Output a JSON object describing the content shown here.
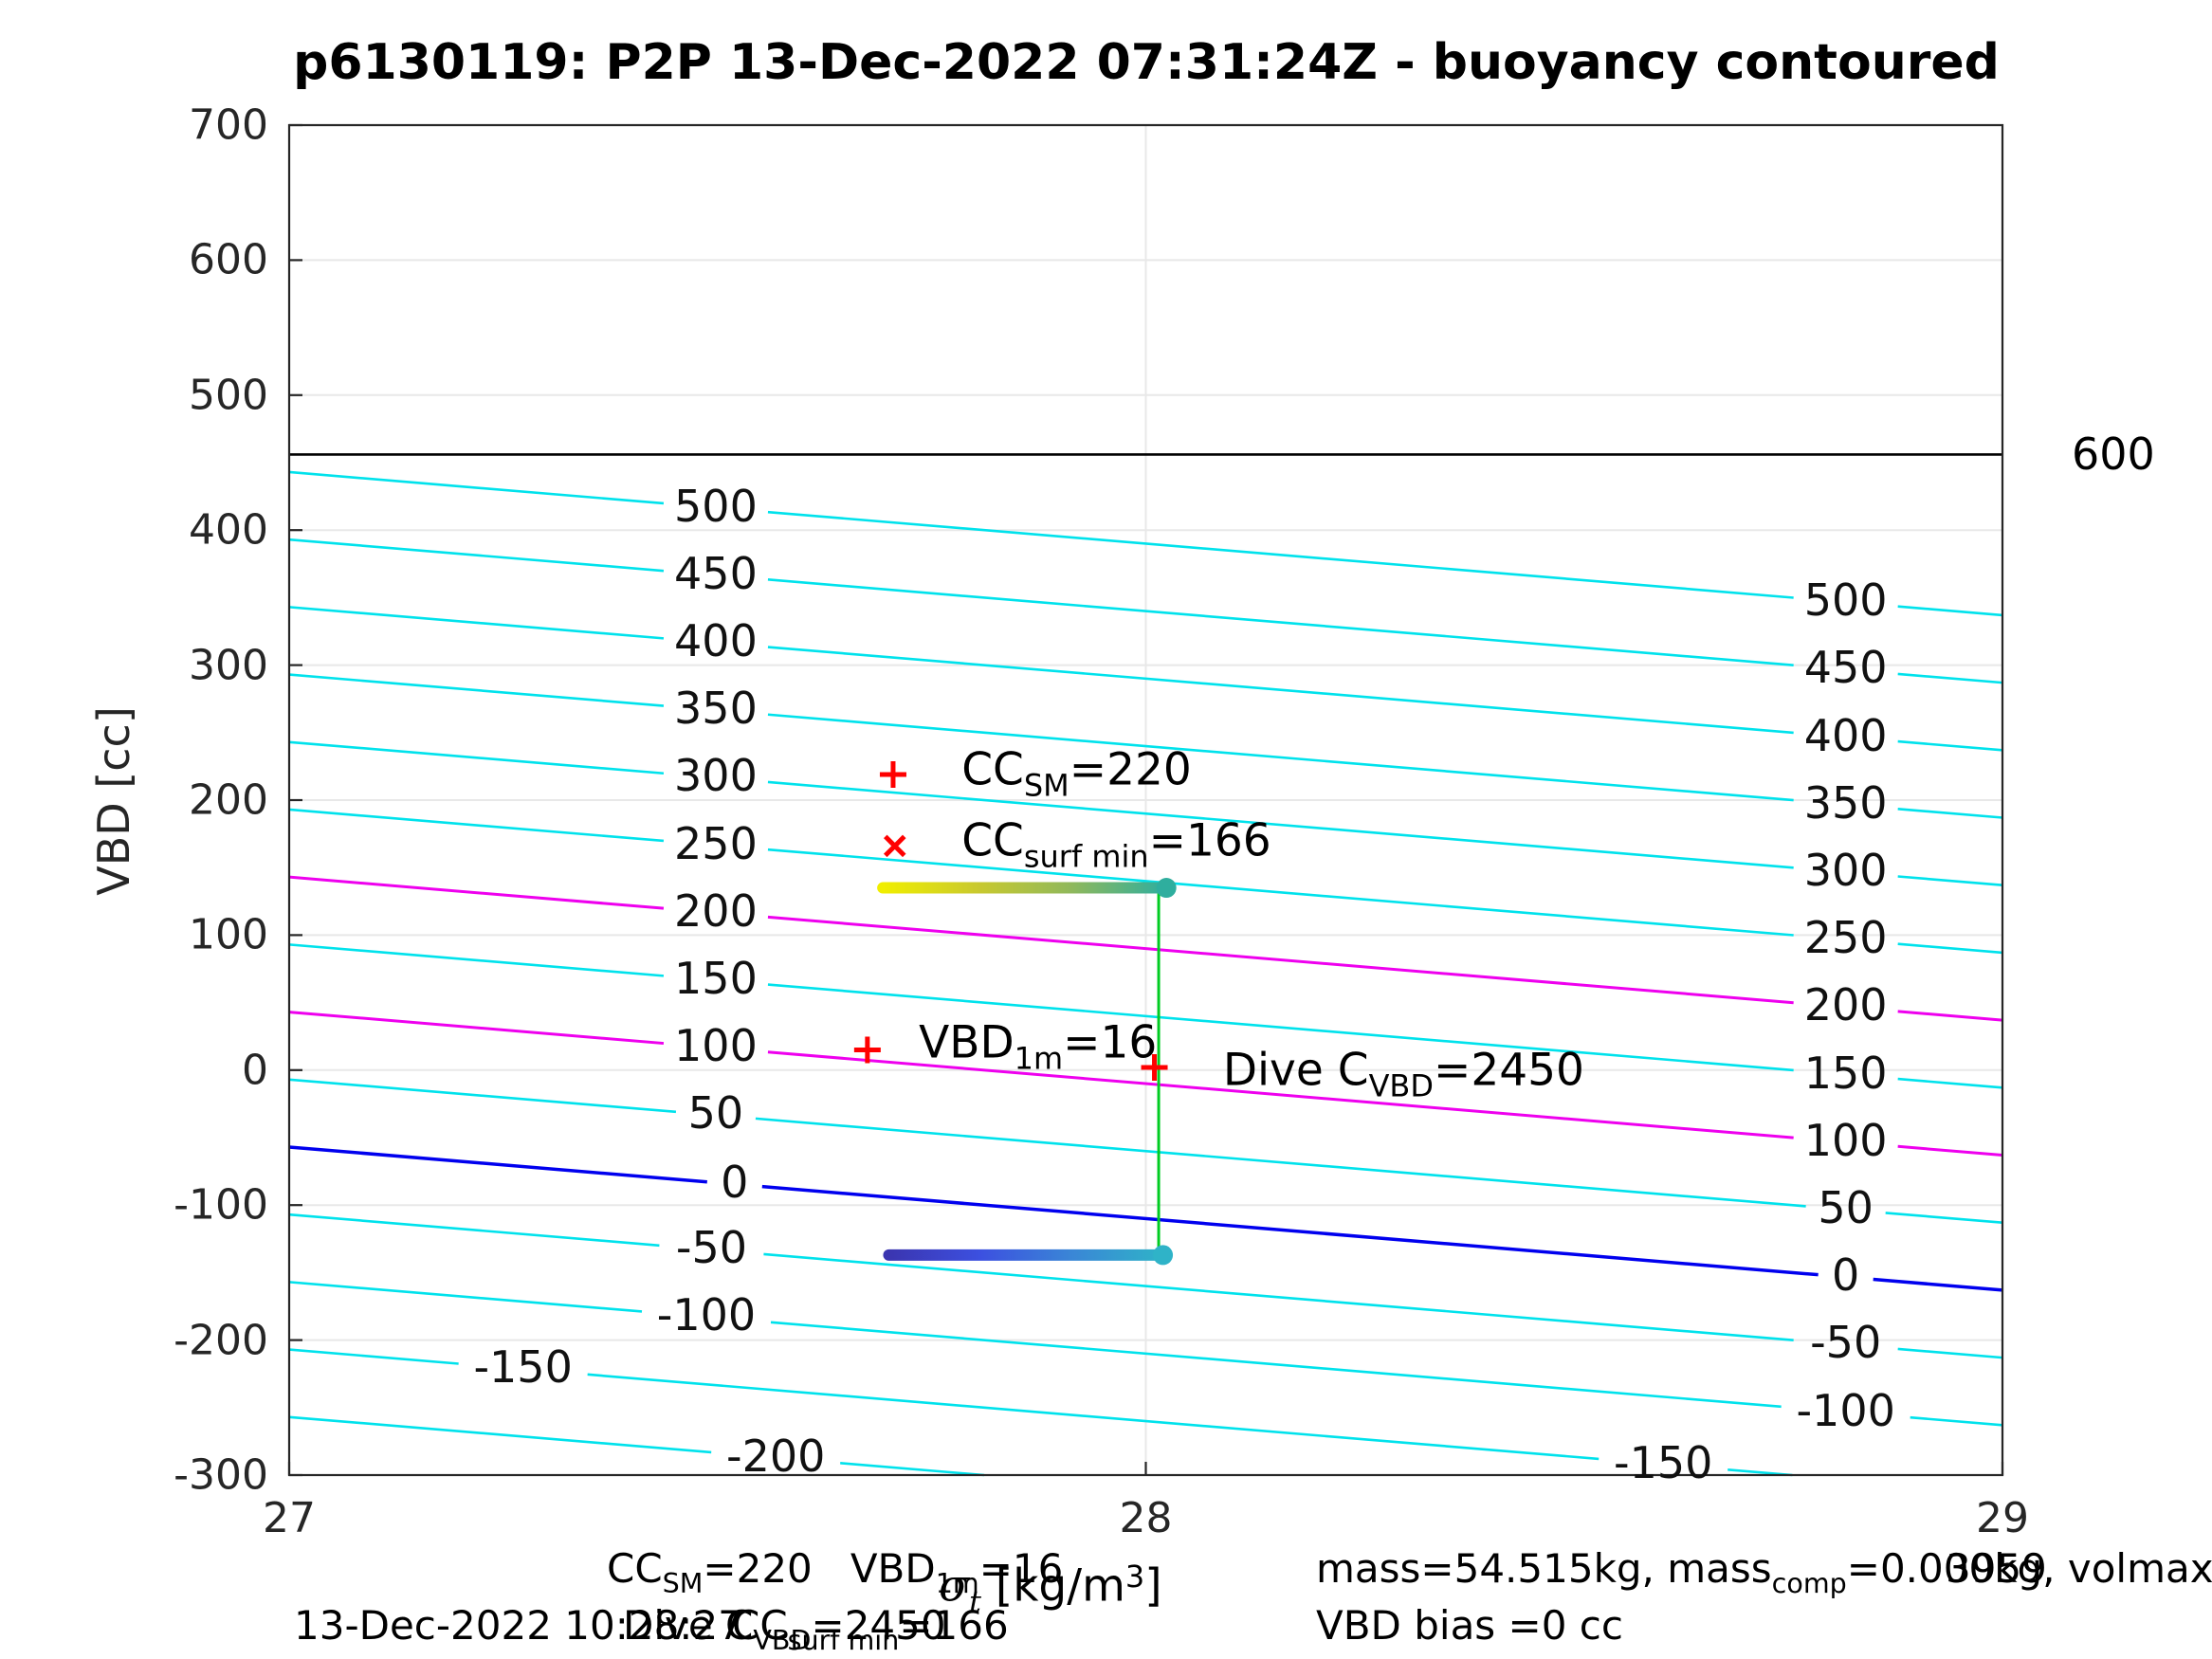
{
  "title": "p6130119: P2P 13-Dec-2022 07:31:24Z - buoyancy contoured",
  "ylabel": "VBD [cc]",
  "yticks": [
    700,
    600,
    500,
    400,
    300,
    200,
    100,
    0,
    -100,
    -200,
    -300
  ],
  "xticks": [
    27,
    28,
    29
  ],
  "right_outside_label": "600",
  "chart_data": {
    "type": "contour",
    "title": "p6130119: P2P 13-Dec-2022 07:31:24Z - buoyancy contoured",
    "xlabel": "sigma_t [kg/m^3]",
    "ylabel": "VBD [cc]",
    "xlim": [
      27,
      29
    ],
    "ylim": [
      -300,
      700
    ],
    "grid": {
      "x": [
        28
      ],
      "y": [
        600,
        500,
        400,
        300,
        200,
        100,
        0,
        -100,
        -200
      ]
    },
    "colors": {
      "cyan": "#00e2ec",
      "magenta": "#ee00ee",
      "blue": "#0000ee",
      "black": "#000000",
      "green": "#00cc22",
      "red": "#ff0000",
      "grid": "#e8e8e8",
      "axis": "#262626"
    },
    "contour_model": {
      "vbd_at_xmin_offset": -57,
      "vbd_slope_per_sigma": -53
    },
    "contours": [
      {
        "level": 500,
        "color": "cyan",
        "labels": [
          27.498,
          28.817
        ]
      },
      {
        "level": 450,
        "color": "cyan",
        "labels": [
          27.498,
          28.817
        ]
      },
      {
        "level": 400,
        "color": "cyan",
        "labels": [
          27.498,
          28.817
        ]
      },
      {
        "level": 350,
        "color": "cyan",
        "labels": [
          27.498,
          28.817
        ]
      },
      {
        "level": 300,
        "color": "cyan",
        "labels": [
          27.498,
          28.817
        ]
      },
      {
        "level": 250,
        "color": "cyan",
        "labels": [
          27.498,
          28.817
        ]
      },
      {
        "level": 200,
        "color": "magenta",
        "labels": [
          27.498,
          28.817
        ]
      },
      {
        "level": 150,
        "color": "cyan",
        "labels": [
          27.498,
          28.817
        ]
      },
      {
        "level": 100,
        "color": "magenta",
        "labels": [
          27.498,
          28.817
        ]
      },
      {
        "level": 50,
        "color": "cyan",
        "labels": [
          27.498,
          28.817
        ]
      },
      {
        "level": 0,
        "color": "blue",
        "labels": [
          27.52,
          28.817
        ]
      },
      {
        "level": -50,
        "color": "cyan",
        "labels": [
          27.493,
          28.817
        ]
      },
      {
        "level": -100,
        "color": "cyan",
        "labels": [
          27.487,
          28.817
        ]
      },
      {
        "level": -150,
        "color": "cyan",
        "labels": [
          27.273,
          28.604
        ]
      },
      {
        "level": -200,
        "color": "cyan",
        "labels": [
          27.568
        ]
      }
    ],
    "reference_line": {
      "vbd": 456,
      "color": "black",
      "label": "600"
    },
    "series": [
      {
        "name": "surface-drift",
        "vbd": 135,
        "sigma_start": 27.693,
        "sigma_end": 28.024,
        "gradient": [
          "#f0ee00",
          "#c9c92e",
          "#8fb85c",
          "#2fae9e"
        ],
        "end_dot": "#2fae9e"
      },
      {
        "name": "dive-drift",
        "vbd": -137,
        "sigma_start": 27.7,
        "sigma_end": 28.02,
        "gradient": [
          "#3b35b0",
          "#3c50e0",
          "#3a86d6",
          "#2fb3c8"
        ],
        "end_dot": "#2fb3c8"
      }
    ],
    "connector": {
      "sigma": 28.015,
      "vbd_top": 135,
      "vbd_bottom": -137
    },
    "markers": [
      {
        "shape": "plus",
        "sigma": 27.705,
        "vbd": 219
      },
      {
        "shape": "cross",
        "sigma": 27.707,
        "vbd": 166
      },
      {
        "shape": "plus",
        "sigma": 27.675,
        "vbd": 15
      },
      {
        "shape": "plus",
        "sigma": 28.01,
        "vbd": 2
      }
    ],
    "annotations": [
      {
        "name": "cc-sm-annotation",
        "sigma": 27.785,
        "vbd": 219,
        "segments": [
          {
            "t": "CC"
          },
          {
            "sub": "SM"
          },
          {
            "t": "=220"
          }
        ]
      },
      {
        "name": "cc-surfmin-annotation",
        "sigma": 27.785,
        "vbd": 166,
        "segments": [
          {
            "t": "CC"
          },
          {
            "sub": "surf min"
          },
          {
            "t": "=166"
          }
        ]
      },
      {
        "name": "vbd-1m-annotation",
        "sigma": 27.735,
        "vbd": 17,
        "segments": [
          {
            "t": "VBD"
          },
          {
            "sub": "1m"
          },
          {
            "t": "=16"
          }
        ]
      },
      {
        "name": "dive-cvbd-annotation",
        "sigma": 28.09,
        "vbd": -4,
        "segments": [
          {
            "t": "Dive C"
          },
          {
            "sub": "VBD"
          },
          {
            "t": "=2450"
          }
        ]
      }
    ]
  },
  "footer": {
    "row1": [
      {
        "name": "footer-cc-vbd",
        "x": 640,
        "segments": [
          {
            "t": "CC"
          },
          {
            "sub": "SM"
          },
          {
            "t": "=220   VBD"
          },
          {
            "sub": "1m"
          },
          {
            "t": "=16"
          }
        ]
      },
      {
        "name": "footer-mass",
        "x": 1388,
        "segments": [
          {
            "t": "mass=54.515kg, mass"
          },
          {
            "sub": "comp"
          },
          {
            "t": "=0.000kg, volmax"
          }
        ]
      },
      {
        "name": "footer-volmax-number",
        "x": 2052,
        "segments": [
          {
            "t": "3959"
          }
        ]
      }
    ],
    "xaxis_label": {
      "x": 990,
      "segments": [
        {
          "t": "σ",
          "math": true
        },
        {
          "sub": "t",
          "math": true
        },
        {
          "t": " [kg/m"
        },
        {
          "sup": "3"
        },
        {
          "t": "]"
        }
      ]
    },
    "row2": [
      {
        "name": "footer-timestamp",
        "x": 310,
        "segments": [
          {
            "t": "13-Dec-2022 10:28:27"
          }
        ]
      },
      {
        "name": "footer-dive-cvbd",
        "x": 657,
        "segments": [
          {
            "t": "Dive C"
          },
          {
            "sub": "VBD"
          },
          {
            "t": "=2450"
          }
        ]
      },
      {
        "name": "footer-cc-surfmin",
        "x": 772,
        "segments": [
          {
            "t": "CC"
          },
          {
            "sub": "surf min"
          },
          {
            "t": "=166"
          }
        ]
      },
      {
        "name": "footer-vbd-bias",
        "x": 1388,
        "segments": [
          {
            "t": "VBD bias =0 cc"
          }
        ]
      }
    ]
  }
}
